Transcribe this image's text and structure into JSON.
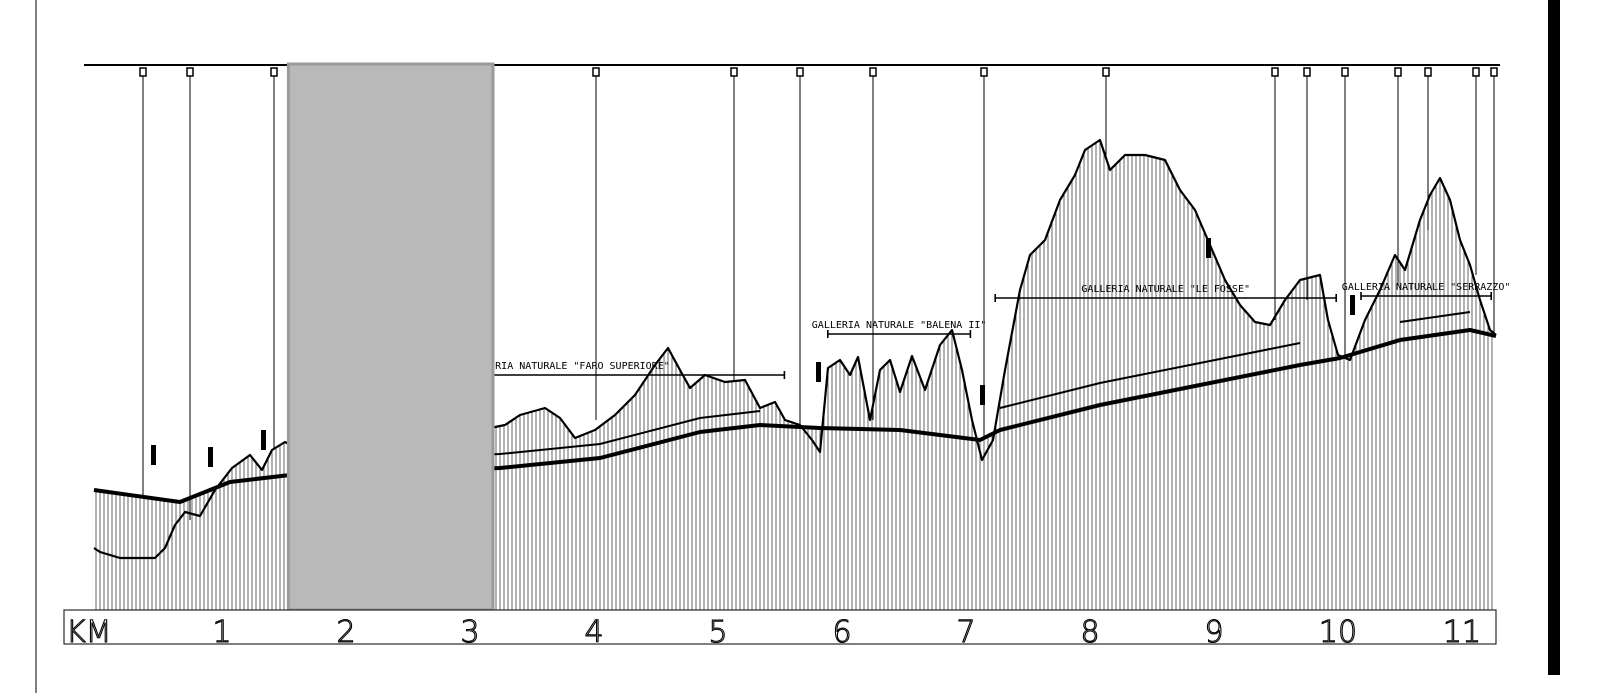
{
  "km_axis": {
    "unit_label": "KM",
    "ticks": [
      "1",
      "2",
      "3",
      "4",
      "5",
      "6",
      "7",
      "8",
      "9",
      "10",
      "11"
    ],
    "km_values": [
      1,
      2,
      3,
      4,
      5,
      6,
      7,
      8,
      9,
      10,
      11
    ]
  },
  "tunnels": [
    {
      "label": "GALLERIA NATURALE \"FARO SUPERIORE\"",
      "from_km": 2.1,
      "to_km": 5.6
    },
    {
      "label": "GALLERIA   NATURALE \"BALENA II\"",
      "from_km": 5.95,
      "to_km": 7.1
    },
    {
      "label": "GALLERIA NATURALE \"LE FOSSE\"",
      "from_km": 7.3,
      "to_km": 10.05
    },
    {
      "label": "GALLERIA NATURALE \"SERRAZZO\"",
      "from_km": 10.25,
      "to_km": 11.3
    }
  ],
  "highlight_region": {
    "from_km": 1.6,
    "to_km": 3.25,
    "color": "#b9b9b9"
  },
  "colors": {
    "line": "#000000",
    "highlight": "#b9b9b9",
    "highlight_border": "#9a9a9a"
  }
}
